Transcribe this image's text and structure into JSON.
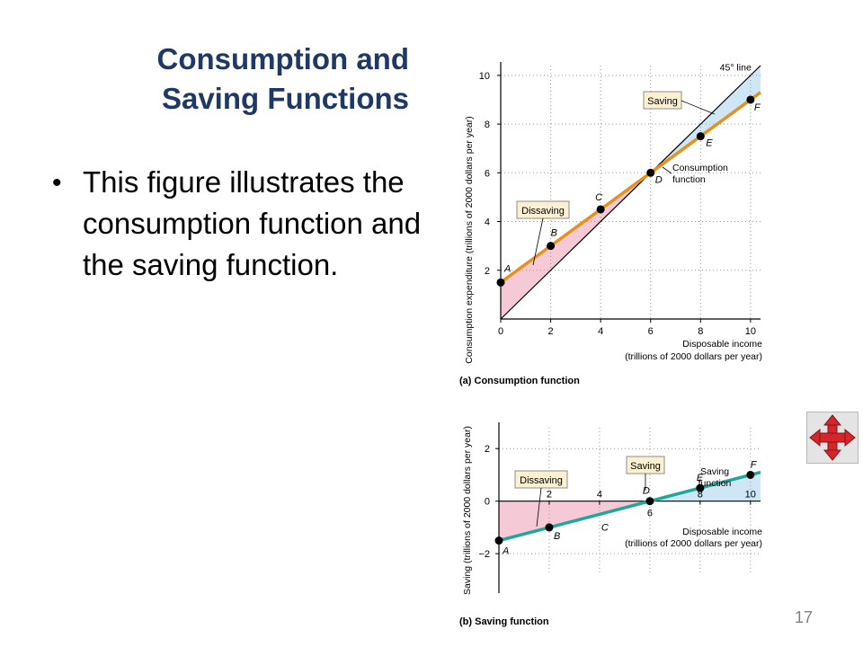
{
  "slide": {
    "title_line1": "Consumption and",
    "title_line2": "Saving Functions",
    "bullet": "This figure illustrates the consumption function and the saving function.",
    "page_number": "17",
    "nav_icon": "four-way-arrows-icon"
  },
  "colors": {
    "title": "#1f3864",
    "consumption_line": "#e8901c",
    "saving_line": "#1ea89a",
    "dissaving_fill": "#f6c9d6",
    "saving_fill": "#cfe6f7",
    "label_box": "#fbf0cf"
  },
  "chart_data": [
    {
      "type": "line",
      "caption": "(a) Consumption function",
      "xlabel_line1": "Disposable income",
      "xlabel_line2": "(trillions of 2000 dollars per year)",
      "ylabel": "Consumption expenditure (trillions of 2000 dollars per year)",
      "xlim": [
        0,
        10.4
      ],
      "ylim": [
        0,
        10.4
      ],
      "xticks": [
        "0",
        "2",
        "4",
        "6",
        "8",
        "10"
      ],
      "xtick_values": [
        0,
        2,
        4,
        6,
        8,
        10
      ],
      "yticks": [
        "2",
        "4",
        "6",
        "8",
        "10"
      ],
      "ytick_values": [
        2,
        4,
        6,
        8,
        10
      ],
      "points": [
        {
          "label": "A",
          "x": 0,
          "y": 1.5
        },
        {
          "label": "B",
          "x": 2,
          "y": 3
        },
        {
          "label": "C",
          "x": 4,
          "y": 4.5
        },
        {
          "label": "D",
          "x": 6,
          "y": 6
        },
        {
          "label": "E",
          "x": 8,
          "y": 7.5
        },
        {
          "label": "F",
          "x": 10,
          "y": 9
        }
      ],
      "reference_line": {
        "name": "45° line",
        "x": [
          0,
          10.4
        ],
        "y": [
          0,
          10.4
        ]
      },
      "annotations": {
        "saving": "Saving",
        "dissaving": "Dissaving",
        "function": "Consumption function"
      }
    },
    {
      "type": "line",
      "caption": "(b) Saving function",
      "xlabel_line1": "Disposable income",
      "xlabel_line2": "(trillions of 2000 dollars per year)",
      "ylabel": "Saving (trillions of 2000 dollars per year)",
      "xlim": [
        0,
        10.4
      ],
      "ylim": [
        -3.5,
        3
      ],
      "xticks": [
        "2",
        "4",
        "6",
        "8",
        "10"
      ],
      "xtick_values": [
        2,
        4,
        6,
        8,
        10
      ],
      "yticks": [
        "2",
        "0",
        "−2"
      ],
      "ytick_values": [
        2,
        0,
        -2
      ],
      "points": [
        {
          "label": "A",
          "x": 0,
          "y": -1.5
        },
        {
          "label": "B",
          "x": 2,
          "y": -1
        },
        {
          "label": "C",
          "x": 4,
          "y": -0.5
        },
        {
          "label": "D",
          "x": 6,
          "y": 0
        },
        {
          "label": "E",
          "x": 8,
          "y": 0.5
        },
        {
          "label": "F",
          "x": 10,
          "y": 1
        }
      ],
      "annotations": {
        "saving": "Saving",
        "dissaving": "Dissaving",
        "function": "Saving function"
      }
    }
  ]
}
